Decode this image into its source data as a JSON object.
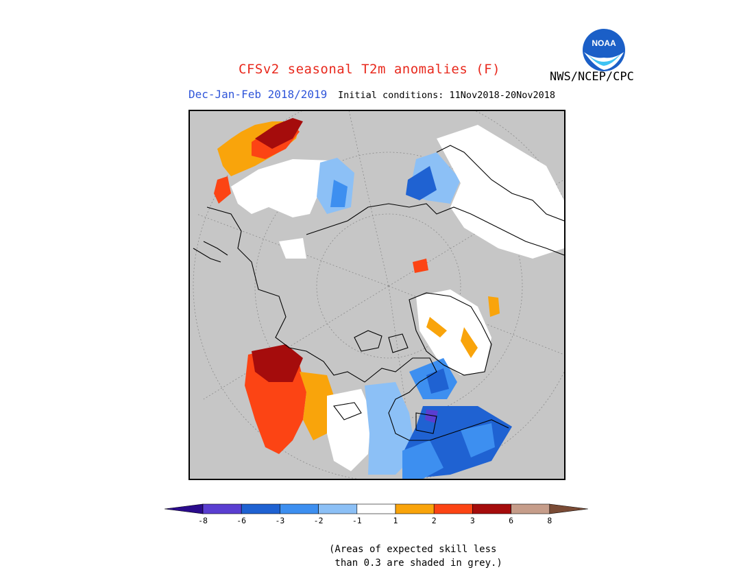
{
  "header": {
    "title": "CFSv2 seasonal T2m anomalies (F)",
    "agency": "NWS/NCEP/CPC",
    "period": "Dec-Jan-Feb 2018/2019",
    "initial_conditions": "Initial conditions: 11Nov2018-20Nov2018",
    "logo_text": "NOAA"
  },
  "map": {
    "projection": "north polar stereographic",
    "grey_shading_meaning": "Areas of expected skill less than 0.3"
  },
  "legend": {
    "ticks": [
      "-8",
      "-6",
      "-3",
      "-2",
      "-1",
      "1",
      "2",
      "3",
      "6",
      "8"
    ],
    "bins": [
      {
        "label": "< -8",
        "color": "#2a0b8c"
      },
      {
        "label": "-8 to -6",
        "color": "#5a3ed1"
      },
      {
        "label": "-6 to -3",
        "color": "#1f62d2"
      },
      {
        "label": "-3 to -2",
        "color": "#3d8ff0"
      },
      {
        "label": "-2 to -1",
        "color": "#8cc0f6"
      },
      {
        "label": "-1 to 1",
        "color": "#ffffff"
      },
      {
        "label": "1 to 2",
        "color": "#f9a40b"
      },
      {
        "label": "2 to 3",
        "color": "#fc4414"
      },
      {
        "label": "3 to 6",
        "color": "#a50c0c"
      },
      {
        "label": "6 to 8",
        "color": "#c69d8a"
      },
      {
        "label": "> 8",
        "color": "#7a4b35"
      }
    ],
    "note": "(Areas of expected skill less\n than 0.3 are shaded in grey.)"
  },
  "colors": {
    "grey_low_skill": "#c6c6c6",
    "title_red": "#e8281c",
    "period_blue": "#2f55d9"
  }
}
